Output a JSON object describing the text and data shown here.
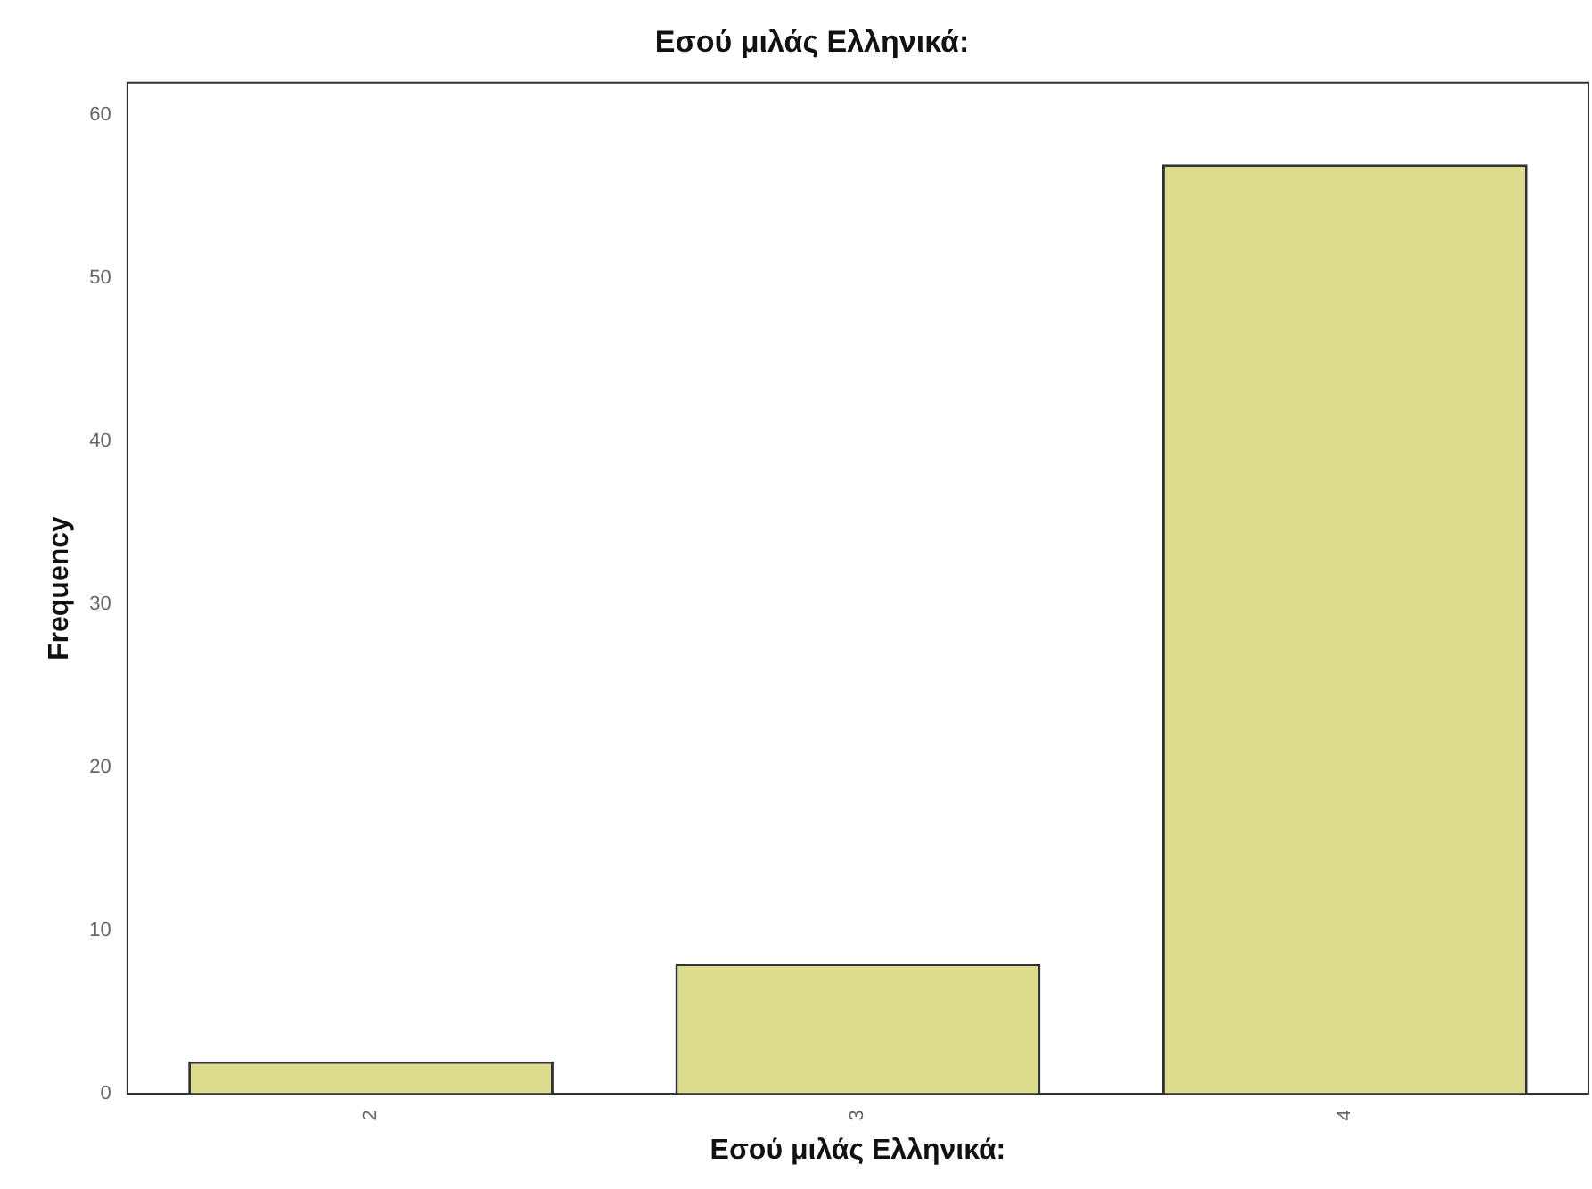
{
  "chart_data": {
    "type": "bar",
    "title": "Εσού μιλάς Ελληνικά:",
    "xlabel": "Εσού μιλάς Ελληνικά:",
    "ylabel": "Frequency",
    "categories": [
      "2",
      "3",
      "4"
    ],
    "values": [
      2,
      8,
      57
    ],
    "color": "#dcdc8c",
    "ylim": [
      0,
      62
    ],
    "yticks": [
      0,
      10,
      20,
      30,
      40,
      50,
      60
    ],
    "grid": false,
    "legend": false
  }
}
